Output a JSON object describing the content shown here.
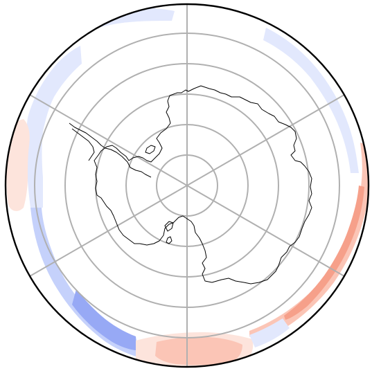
{
  "map": {
    "projection": "south-polar-stereographic",
    "gridlines": {
      "parallel_count": 5,
      "meridian_spokes": 6
    },
    "colors": {
      "background": "#ffffff",
      "grid": "#b0b0b0",
      "coastline": "#000000",
      "boundary": "#000000",
      "positive_light": "#fde4dc",
      "positive_mid": "#fbc5b6",
      "positive_strong": "#f6a08a",
      "negative_light": "#e2e8fd",
      "negative_mid": "#c5d1fb",
      "negative_strong": "#97a9f5"
    },
    "anomaly_regions": [
      {
        "name": "south-pacific-blue-arc",
        "sign": "negative",
        "level": "mid"
      },
      {
        "name": "south-pacific-blue-core",
        "sign": "negative",
        "level": "strong"
      },
      {
        "name": "western-blue-band",
        "sign": "negative",
        "level": "light"
      },
      {
        "name": "western-red-patch",
        "sign": "positive",
        "level": "light"
      },
      {
        "name": "atlantic-red-patch",
        "sign": "positive",
        "level": "light"
      },
      {
        "name": "atlantic-red-core",
        "sign": "positive",
        "level": "mid"
      },
      {
        "name": "indian-ocean-red-arc",
        "sign": "positive",
        "level": "mid"
      },
      {
        "name": "indian-ocean-red-core",
        "sign": "positive",
        "level": "strong"
      },
      {
        "name": "northeast-blue-band",
        "sign": "negative",
        "level": "light"
      },
      {
        "name": "north-blue-patch",
        "sign": "negative",
        "level": "light"
      },
      {
        "name": "southeast-blue-patch",
        "sign": "negative",
        "level": "light"
      }
    ]
  }
}
